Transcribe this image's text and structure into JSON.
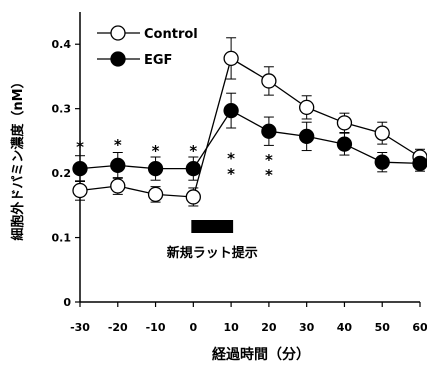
{
  "chart_data": {
    "type": "line",
    "ylabel": "細胞外ドパミン濃度（nM）",
    "xlabel": "経過時間（分）",
    "x": [
      -30,
      -20,
      -10,
      0,
      10,
      20,
      30,
      40,
      50,
      60
    ],
    "xticks": [
      "-30",
      "-20",
      "-10",
      "0",
      "10",
      "20",
      "30",
      "40",
      "50",
      "60"
    ],
    "yticks": [
      "0",
      "0.1",
      "0.2",
      "0.3",
      "0.4"
    ],
    "ylim": [
      0,
      0.45
    ],
    "xlim": [
      -30,
      60
    ],
    "grid": false,
    "legend_position": "top-left",
    "series": [
      {
        "name": "Control",
        "marker": "open-circle",
        "values": [
          0.173,
          0.18,
          0.167,
          0.163,
          0.378,
          0.343,
          0.302,
          0.278,
          0.262,
          0.225
        ],
        "errors": [
          0.015,
          0.013,
          0.012,
          0.014,
          0.032,
          0.022,
          0.018,
          0.015,
          0.017,
          0.012
        ]
      },
      {
        "name": "EGF",
        "marker": "filled-circle",
        "values": [
          0.207,
          0.212,
          0.207,
          0.207,
          0.297,
          0.265,
          0.257,
          0.245,
          0.217,
          0.215
        ],
        "errors": [
          0.02,
          0.02,
          0.018,
          0.018,
          0.027,
          0.022,
          0.022,
          0.017,
          0.015,
          0.012
        ]
      }
    ],
    "significance": [
      {
        "x": -30,
        "y": 0.245,
        "text": "*"
      },
      {
        "x": -20,
        "y": 0.248,
        "text": "*"
      },
      {
        "x": -10,
        "y": 0.239,
        "text": "*"
      },
      {
        "x": 0,
        "y": 0.239,
        "text": "*"
      },
      {
        "x": 10,
        "y": 0.227,
        "text": "*"
      },
      {
        "x": 10,
        "y": 0.203,
        "text": "*"
      },
      {
        "x": 20,
        "y": 0.225,
        "text": "*"
      },
      {
        "x": 20,
        "y": 0.202,
        "text": "*"
      }
    ],
    "stimulus": {
      "label": "新規ラット提示",
      "x_start": 0,
      "x_end": 10
    }
  }
}
